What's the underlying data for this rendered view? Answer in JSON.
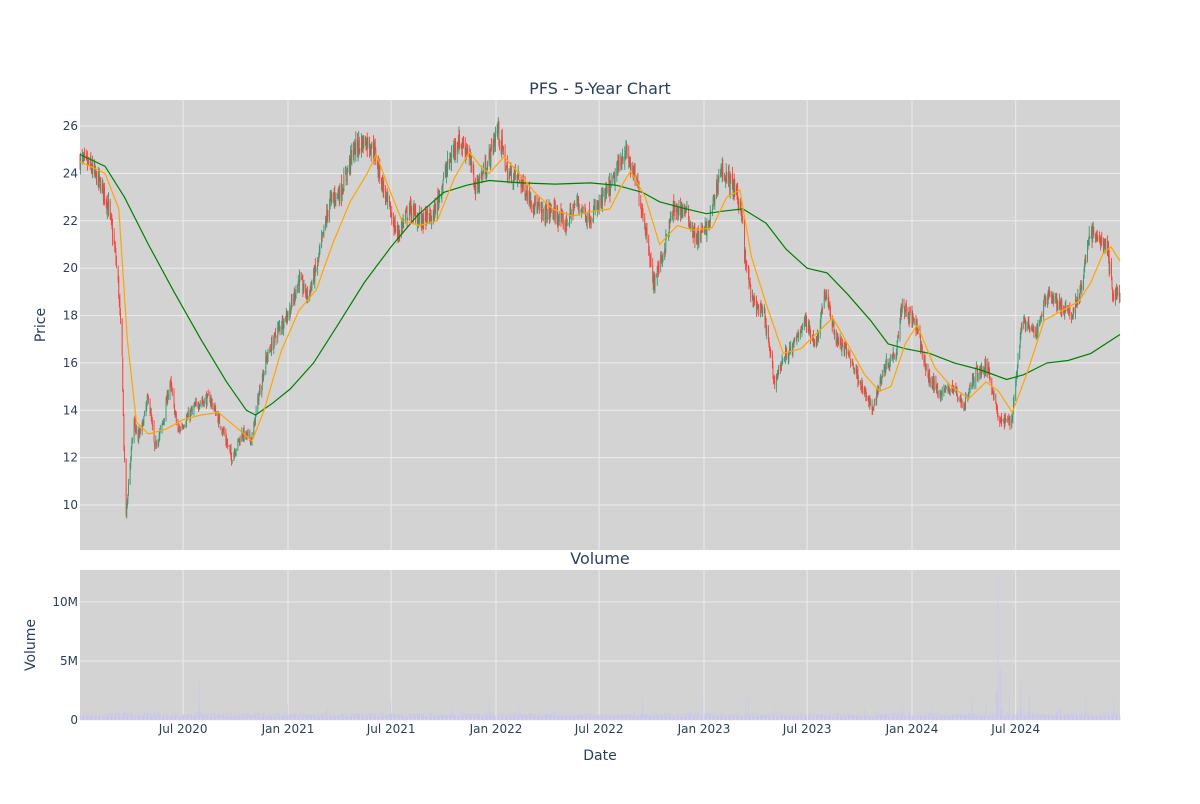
{
  "chart_data": [
    {
      "type": "candlestick",
      "title": "PFS - 5-Year Chart",
      "xlabel": "",
      "ylabel": "Price",
      "ylim": [
        8.1,
        27.1
      ],
      "xlim": [
        "2020-01-02",
        "2024-12-31"
      ],
      "y_ticks": [
        10,
        12,
        14,
        16,
        18,
        20,
        22,
        24,
        26
      ],
      "grid": true,
      "legend": "none",
      "colors": {
        "plot_background": "#d3d3d3",
        "grid": "#ebebeb",
        "increasing": "#3d9970",
        "decreasing": "#ff4136",
        "short_ma": "#ffa500",
        "long_ma": "#008000",
        "text": "#2a3f5f"
      },
      "close_path": [
        [
          "2020-01-02",
          24.6
        ],
        [
          "2020-01-20",
          24.3
        ],
        [
          "2020-02-10",
          23.4
        ],
        [
          "2020-02-21",
          22.6
        ],
        [
          "2020-03-02",
          21.0
        ],
        [
          "2020-03-09",
          19.4
        ],
        [
          "2020-03-16",
          16.2
        ],
        [
          "2020-03-19",
          12.5
        ],
        [
          "2020-03-23",
          9.6
        ],
        [
          "2020-03-30",
          11.8
        ],
        [
          "2020-04-06",
          13.5
        ],
        [
          "2020-04-13",
          12.8
        ],
        [
          "2020-04-20",
          13.3
        ],
        [
          "2020-05-01",
          14.6
        ],
        [
          "2020-05-12",
          12.4
        ],
        [
          "2020-05-26",
          13.4
        ],
        [
          "2020-06-08",
          15.2
        ],
        [
          "2020-06-22",
          13.1
        ],
        [
          "2020-07-06",
          13.6
        ],
        [
          "2020-07-27",
          14.3
        ],
        [
          "2020-08-17",
          14.5
        ],
        [
          "2020-09-08",
          13.2
        ],
        [
          "2020-09-24",
          12.0
        ],
        [
          "2020-10-12",
          13.0
        ],
        [
          "2020-10-30",
          12.8
        ],
        [
          "2020-11-09",
          14.4
        ],
        [
          "2020-11-23",
          16.1
        ],
        [
          "2020-12-14",
          17.4
        ],
        [
          "2021-01-04",
          18.2
        ],
        [
          "2021-01-20",
          19.5
        ],
        [
          "2021-02-05",
          18.8
        ],
        [
          "2021-02-22",
          20.2
        ],
        [
          "2021-03-15",
          22.8
        ],
        [
          "2021-04-05",
          23.3
        ],
        [
          "2021-04-26",
          25.0
        ],
        [
          "2021-05-17",
          25.4
        ],
        [
          "2021-06-01",
          25.0
        ],
        [
          "2021-06-21",
          23.0
        ],
        [
          "2021-07-12",
          21.4
        ],
        [
          "2021-08-02",
          22.5
        ],
        [
          "2021-08-23",
          22.0
        ],
        [
          "2021-09-13",
          22.2
        ],
        [
          "2021-10-04",
          24.0
        ],
        [
          "2021-10-25",
          25.4
        ],
        [
          "2021-11-12",
          25.0
        ],
        [
          "2021-11-26",
          23.4
        ],
        [
          "2021-12-17",
          24.4
        ],
        [
          "2022-01-04",
          25.9
        ],
        [
          "2022-01-21",
          24.0
        ],
        [
          "2022-02-10",
          23.8
        ],
        [
          "2022-03-01",
          23.0
        ],
        [
          "2022-03-22",
          22.3
        ],
        [
          "2022-04-11",
          22.4
        ],
        [
          "2022-05-02",
          21.8
        ],
        [
          "2022-05-23",
          22.8
        ],
        [
          "2022-06-13",
          22.1
        ],
        [
          "2022-07-05",
          22.8
        ],
        [
          "2022-07-25",
          23.6
        ],
        [
          "2022-08-15",
          25.0
        ],
        [
          "2022-09-06",
          23.5
        ],
        [
          "2022-09-26",
          21.0
        ],
        [
          "2022-10-03",
          19.3
        ],
        [
          "2022-10-21",
          20.6
        ],
        [
          "2022-11-07",
          22.4
        ],
        [
          "2022-11-28",
          22.5
        ],
        [
          "2022-12-19",
          21.2
        ],
        [
          "2023-01-09",
          21.8
        ],
        [
          "2023-01-30",
          24.2
        ],
        [
          "2023-02-20",
          23.5
        ],
        [
          "2023-03-08",
          22.5
        ],
        [
          "2023-03-13",
          20.5
        ],
        [
          "2023-03-27",
          18.6
        ],
        [
          "2023-04-17",
          18.0
        ],
        [
          "2023-05-04",
          15.2
        ],
        [
          "2023-05-22",
          16.3
        ],
        [
          "2023-06-05",
          16.6
        ],
        [
          "2023-06-26",
          17.8
        ],
        [
          "2023-07-17",
          16.8
        ],
        [
          "2023-08-01",
          19.0
        ],
        [
          "2023-08-21",
          17.0
        ],
        [
          "2023-09-11",
          16.4
        ],
        [
          "2023-10-02",
          15.2
        ],
        [
          "2023-10-23",
          14.0
        ],
        [
          "2023-11-13",
          15.8
        ],
        [
          "2023-12-04",
          16.5
        ],
        [
          "2023-12-14",
          18.5
        ],
        [
          "2024-01-08",
          17.6
        ],
        [
          "2024-01-29",
          15.4
        ],
        [
          "2024-02-20",
          14.7
        ],
        [
          "2024-03-11",
          15.0
        ],
        [
          "2024-04-01",
          14.2
        ],
        [
          "2024-04-22",
          15.6
        ],
        [
          "2024-05-13",
          15.8
        ],
        [
          "2024-06-03",
          13.5
        ],
        [
          "2024-06-24",
          13.6
        ],
        [
          "2024-07-12",
          17.8
        ],
        [
          "2024-08-05",
          17.2
        ],
        [
          "2024-08-26",
          19.0
        ],
        [
          "2024-09-16",
          18.4
        ],
        [
          "2024-10-07",
          18.0
        ],
        [
          "2024-10-28",
          19.5
        ],
        [
          "2024-11-06",
          21.5
        ],
        [
          "2024-11-25",
          21.2
        ],
        [
          "2024-12-09",
          20.8
        ],
        [
          "2024-12-18",
          18.9
        ],
        [
          "2024-12-31",
          18.9
        ]
      ],
      "short_ma": [
        [
          "2020-01-02",
          24.5
        ],
        [
          "2020-02-15",
          24.0
        ],
        [
          "2020-03-10",
          22.5
        ],
        [
          "2020-03-25",
          17.0
        ],
        [
          "2020-04-10",
          13.5
        ],
        [
          "2020-05-01",
          13.0
        ],
        [
          "2020-06-01",
          13.2
        ],
        [
          "2020-07-01",
          13.6
        ],
        [
          "2020-08-01",
          13.8
        ],
        [
          "2020-09-01",
          13.9
        ],
        [
          "2020-10-01",
          13.3
        ],
        [
          "2020-10-30",
          12.7
        ],
        [
          "2020-11-20",
          14.0
        ],
        [
          "2020-12-20",
          16.5
        ],
        [
          "2021-01-20",
          18.2
        ],
        [
          "2021-02-20",
          19.1
        ],
        [
          "2021-03-20",
          21.0
        ],
        [
          "2021-04-20",
          22.8
        ],
        [
          "2021-05-20",
          24.0
        ],
        [
          "2021-06-05",
          24.8
        ],
        [
          "2021-06-25",
          23.5
        ],
        [
          "2021-07-20",
          22.0
        ],
        [
          "2021-08-20",
          21.8
        ],
        [
          "2021-09-20",
          22.0
        ],
        [
          "2021-10-20",
          23.8
        ],
        [
          "2021-11-15",
          24.9
        ],
        [
          "2021-12-05",
          24.3
        ],
        [
          "2021-12-20",
          24.0
        ],
        [
          "2022-01-15",
          24.7
        ],
        [
          "2022-02-10",
          24.0
        ],
        [
          "2022-03-10",
          23.2
        ],
        [
          "2022-04-10",
          22.5
        ],
        [
          "2022-05-15",
          22.2
        ],
        [
          "2022-06-20",
          22.4
        ],
        [
          "2022-07-20",
          22.5
        ],
        [
          "2022-08-10",
          23.5
        ],
        [
          "2022-08-25",
          24.1
        ],
        [
          "2022-09-20",
          23.0
        ],
        [
          "2022-10-15",
          21.0
        ],
        [
          "2022-11-15",
          21.8
        ],
        [
          "2022-12-15",
          21.6
        ],
        [
          "2023-01-15",
          21.7
        ],
        [
          "2023-02-10",
          23.0
        ],
        [
          "2023-03-05",
          23.3
        ],
        [
          "2023-03-25",
          20.5
        ],
        [
          "2023-04-20",
          18.5
        ],
        [
          "2023-05-20",
          16.4
        ],
        [
          "2023-06-20",
          16.6
        ],
        [
          "2023-07-20",
          17.3
        ],
        [
          "2023-08-15",
          17.9
        ],
        [
          "2023-09-10",
          16.8
        ],
        [
          "2023-10-10",
          15.5
        ],
        [
          "2023-11-05",
          14.8
        ],
        [
          "2023-11-25",
          15.0
        ],
        [
          "2023-12-20",
          16.8
        ],
        [
          "2024-01-10",
          17.6
        ],
        [
          "2024-02-10",
          15.8
        ],
        [
          "2024-03-10",
          15.0
        ],
        [
          "2024-04-10",
          14.5
        ],
        [
          "2024-05-10",
          15.2
        ],
        [
          "2024-06-01",
          14.8
        ],
        [
          "2024-06-25",
          13.9
        ],
        [
          "2024-07-20",
          15.5
        ],
        [
          "2024-08-20",
          17.8
        ],
        [
          "2024-09-20",
          18.2
        ],
        [
          "2024-10-20",
          18.6
        ],
        [
          "2024-11-10",
          19.4
        ],
        [
          "2024-12-01",
          20.6
        ],
        [
          "2024-12-15",
          20.9
        ],
        [
          "2024-12-31",
          20.3
        ]
      ],
      "long_ma": [
        [
          "2020-01-02",
          24.8
        ],
        [
          "2020-02-15",
          24.3
        ],
        [
          "2020-03-20",
          23.0
        ],
        [
          "2020-05-01",
          21.0
        ],
        [
          "2020-06-15",
          19.0
        ],
        [
          "2020-08-01",
          17.0
        ],
        [
          "2020-09-15",
          15.2
        ],
        [
          "2020-10-20",
          14.0
        ],
        [
          "2020-11-05",
          13.8
        ],
        [
          "2020-12-05",
          14.3
        ],
        [
          "2021-01-05",
          14.9
        ],
        [
          "2021-02-15",
          16.0
        ],
        [
          "2021-04-01",
          17.7
        ],
        [
          "2021-05-15",
          19.4
        ],
        [
          "2021-07-01",
          20.9
        ],
        [
          "2021-08-15",
          22.2
        ],
        [
          "2021-10-01",
          23.2
        ],
        [
          "2021-11-10",
          23.5
        ],
        [
          "2021-12-20",
          23.7
        ],
        [
          "2022-02-15",
          23.6
        ],
        [
          "2022-04-15",
          23.55
        ],
        [
          "2022-06-15",
          23.6
        ],
        [
          "2022-08-01",
          23.5
        ],
        [
          "2022-09-15",
          23.2
        ],
        [
          "2022-10-15",
          22.8
        ],
        [
          "2022-12-01",
          22.5
        ],
        [
          "2023-01-05",
          22.3
        ],
        [
          "2023-02-01",
          22.4
        ],
        [
          "2023-03-10",
          22.5
        ],
        [
          "2023-04-20",
          21.9
        ],
        [
          "2023-05-25",
          20.8
        ],
        [
          "2023-07-01",
          20.0
        ],
        [
          "2023-08-05",
          19.8
        ],
        [
          "2023-09-10",
          18.9
        ],
        [
          "2023-10-20",
          17.8
        ],
        [
          "2023-11-20",
          16.8
        ],
        [
          "2023-12-20",
          16.6
        ],
        [
          "2024-02-01",
          16.4
        ],
        [
          "2024-03-15",
          16.0
        ],
        [
          "2024-05-01",
          15.7
        ],
        [
          "2024-06-15",
          15.3
        ],
        [
          "2024-07-15",
          15.5
        ],
        [
          "2024-08-25",
          16.0
        ],
        [
          "2024-10-01",
          16.1
        ],
        [
          "2024-11-10",
          16.4
        ],
        [
          "2024-12-31",
          17.2
        ]
      ]
    },
    {
      "type": "bar",
      "title": "Volume",
      "xlabel": "Date",
      "ylabel": "Volume",
      "ylim": [
        0,
        12700000
      ],
      "y_ticks": [
        0,
        5000000,
        10000000
      ],
      "y_tick_labels": [
        "0",
        "5M",
        "10M"
      ],
      "x_ticks": [
        "2020-07-01",
        "2021-01-01",
        "2021-07-01",
        "2022-01-01",
        "2022-07-01",
        "2023-01-01",
        "2023-07-01",
        "2024-01-01",
        "2024-07-01"
      ],
      "x_tick_labels": [
        "Jul 2020",
        "Jan 2021",
        "Jul 2021",
        "Jan 2022",
        "Jul 2022",
        "Jan 2023",
        "Jul 2023",
        "Jan 2024",
        "Jul 2024"
      ],
      "grid": true,
      "colors": {
        "bars": "#c9c6f0",
        "plot_background": "#d3d3d3"
      },
      "baseline": 450000,
      "spikes": [
        [
          "2020-03-20",
          800000
        ],
        [
          "2020-05-10",
          650000
        ],
        [
          "2020-07-30",
          3200000
        ],
        [
          "2020-11-15",
          900000
        ],
        [
          "2020-12-31",
          1300000
        ],
        [
          "2021-03-10",
          1100000
        ],
        [
          "2021-06-30",
          1600000
        ],
        [
          "2021-08-15",
          800000
        ],
        [
          "2021-10-15",
          1100000
        ],
        [
          "2021-12-20",
          1800000
        ],
        [
          "2022-02-10",
          1300000
        ],
        [
          "2022-04-15",
          900000
        ],
        [
          "2022-09-01",
          900000
        ],
        [
          "2022-09-15",
          1800000
        ],
        [
          "2022-12-30",
          2000000
        ],
        [
          "2023-03-15",
          1600000
        ],
        [
          "2023-03-20",
          2000000
        ],
        [
          "2023-05-05",
          1200000
        ],
        [
          "2023-06-15",
          800000
        ],
        [
          "2023-08-10",
          900000
        ],
        [
          "2023-10-10",
          1100000
        ],
        [
          "2023-12-15",
          1300000
        ],
        [
          "2024-02-05",
          1200000
        ],
        [
          "2024-04-15",
          2000000
        ],
        [
          "2024-05-10",
          1400000
        ],
        [
          "2024-05-31",
          12200000
        ],
        [
          "2024-06-05",
          4500000
        ],
        [
          "2024-06-20",
          2100000
        ],
        [
          "2024-07-10",
          3200000
        ],
        [
          "2024-07-25",
          2200000
        ],
        [
          "2024-09-15",
          2800000
        ],
        [
          "2024-11-01",
          2000000
        ],
        [
          "2024-12-20",
          2000000
        ]
      ]
    }
  ]
}
